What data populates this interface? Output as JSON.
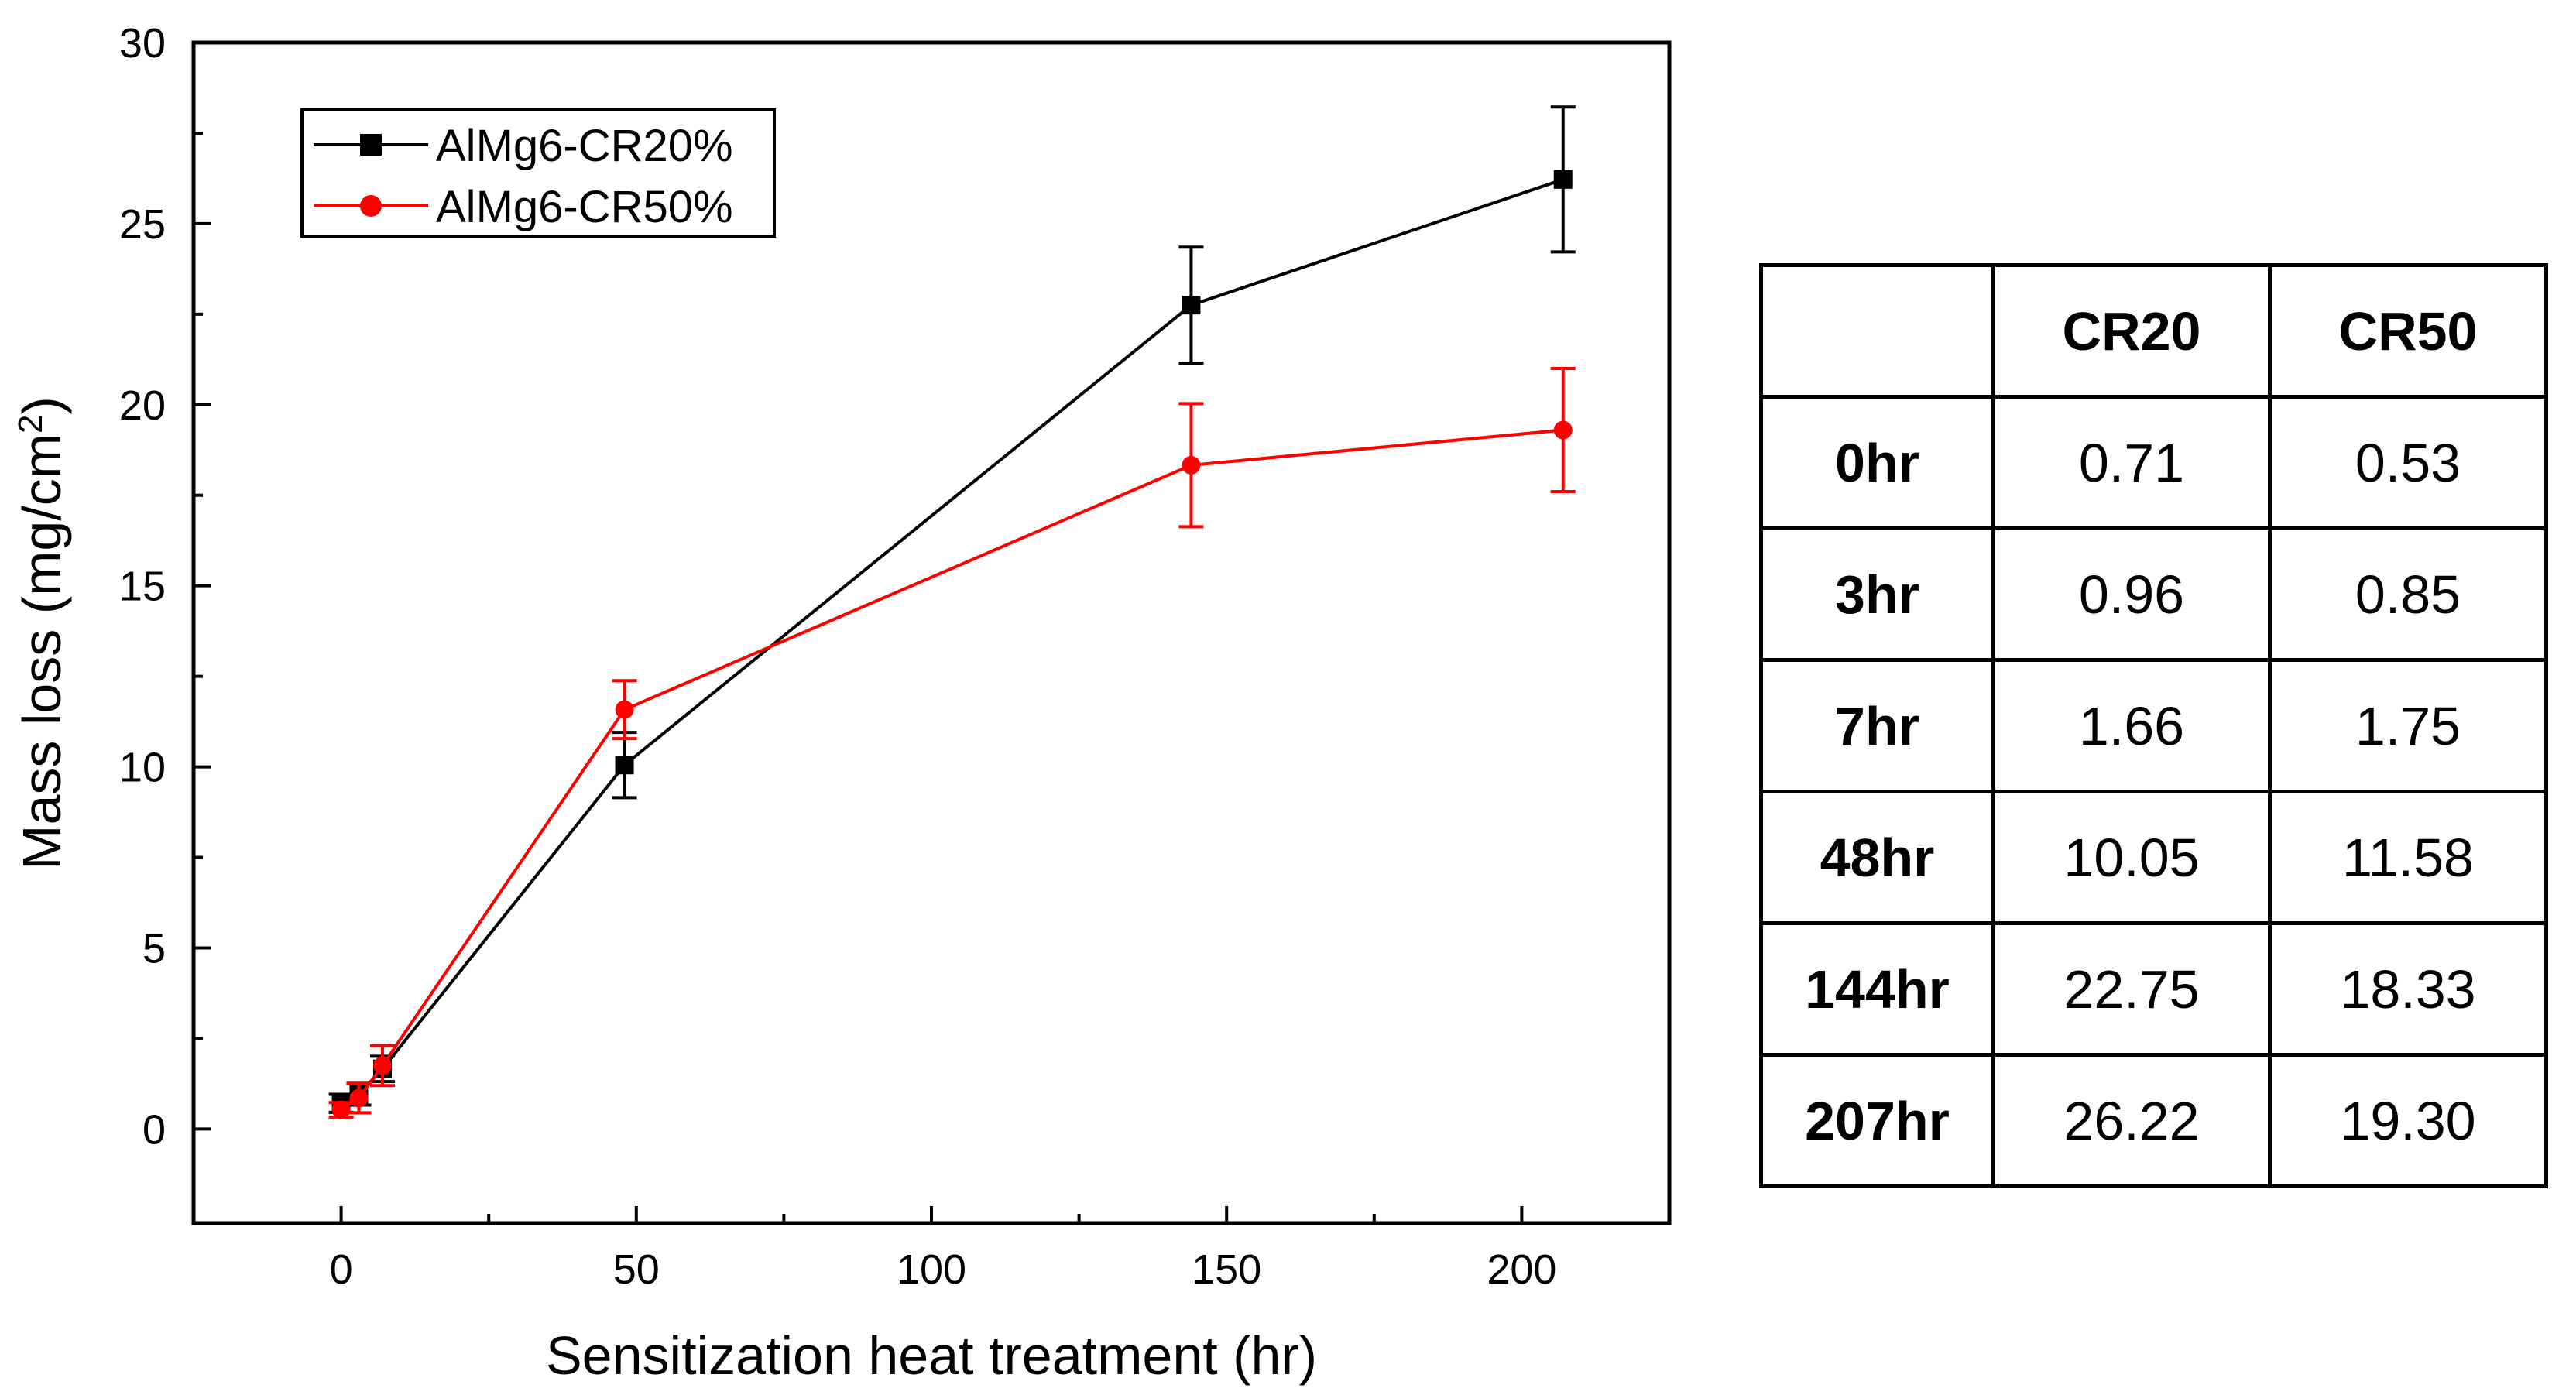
{
  "chart_data": {
    "type": "line",
    "title": "",
    "xlabel": "Sensitization heat treatment (hr)",
    "ylabel_main": "Mass loss (mg/cm",
    "ylabel_sup": "2",
    "ylabel_close": ")",
    "xlim": [
      -25,
      225
    ],
    "ylim": [
      -2.6,
      30
    ],
    "xticks": [
      0,
      50,
      100,
      150,
      200
    ],
    "yticks": [
      0,
      5,
      10,
      15,
      20,
      25,
      30
    ],
    "xtick_labels": [
      "0",
      "50",
      "100",
      "150",
      "200"
    ],
    "ytick_labels": [
      "0",
      "5",
      "10",
      "15",
      "20",
      "25",
      "30"
    ],
    "legend_position": "top-left",
    "grid": false,
    "series": [
      {
        "name": "AlMg6-CR20%",
        "color": "#000000",
        "marker": "square",
        "x": [
          0,
          3,
          7,
          48,
          144,
          207
        ],
        "y": [
          0.71,
          0.96,
          1.66,
          10.05,
          22.75,
          26.22
        ],
        "err": [
          0.25,
          0.3,
          0.35,
          0.9,
          1.6,
          2.0
        ]
      },
      {
        "name": "AlMg6-CR50%",
        "color": "#ff0000",
        "marker": "circle",
        "x": [
          0,
          3,
          7,
          48,
          144,
          207
        ],
        "y": [
          0.53,
          0.85,
          1.75,
          11.58,
          18.33,
          19.3
        ],
        "err": [
          0.2,
          0.4,
          0.55,
          0.8,
          1.7,
          1.7
        ]
      }
    ]
  },
  "table": {
    "headers": [
      "",
      "CR20",
      "CR50"
    ],
    "rows": [
      [
        "0hr",
        "0.71",
        "0.53"
      ],
      [
        "3hr",
        "0.96",
        "0.85"
      ],
      [
        "7hr",
        "1.66",
        "1.75"
      ],
      [
        "48hr",
        "10.05",
        "11.58"
      ],
      [
        "144hr",
        "22.75",
        "18.33"
      ],
      [
        "207hr",
        "26.22",
        "19.30"
      ]
    ]
  }
}
